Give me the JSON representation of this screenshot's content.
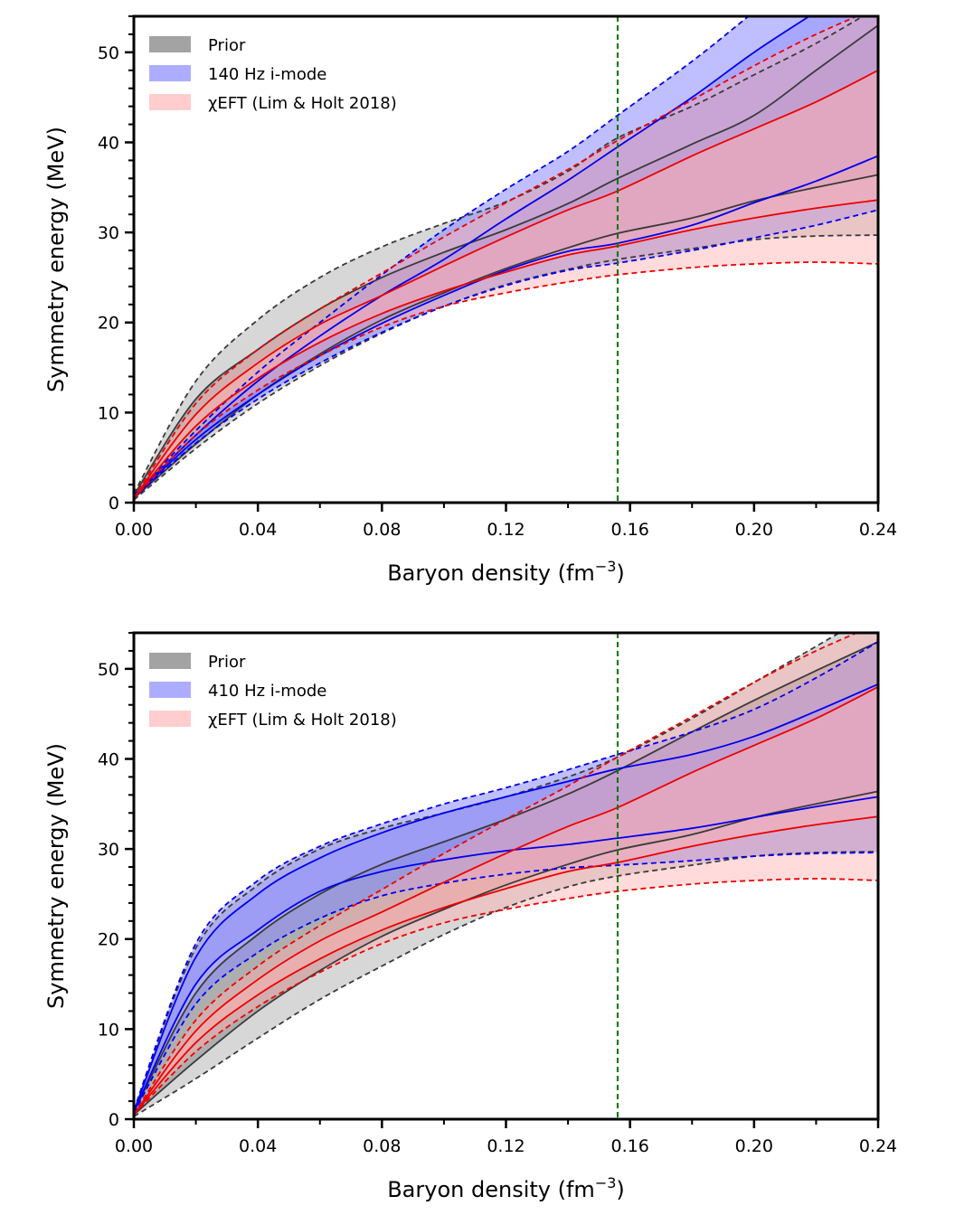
{
  "chart_data": [
    {
      "type": "area",
      "xlabel": "Baryon density (fm",
      "xlabel_sup": "−3",
      "xlabel_end": ")",
      "ylabel": "Symmetry energy (MeV)",
      "xlim": [
        0,
        0.24
      ],
      "ylim": [
        0,
        54
      ],
      "xticks": [
        0.0,
        0.04,
        0.08,
        0.12,
        0.16,
        0.2,
        0.24
      ],
      "xtick_labels": [
        "0.00",
        "0.04",
        "0.08",
        "0.12",
        "0.16",
        "0.20",
        "0.24"
      ],
      "yticks": [
        0,
        10,
        20,
        30,
        40,
        50
      ],
      "ytick_labels": [
        "0",
        "10",
        "20",
        "30",
        "40",
        "50"
      ],
      "vline_x": 0.156,
      "legend_position": "top-left",
      "legend": [
        {
          "label": "Prior",
          "color": "#8c8c8c"
        },
        {
          "label": "140 Hz i-mode",
          "color": "#9999ff"
        },
        {
          "label": "χEFT (Lim & Holt 2018)",
          "color": "#ffc0c0"
        }
      ],
      "x": [
        0.0,
        0.02,
        0.04,
        0.06,
        0.08,
        0.1,
        0.12,
        0.14,
        0.156,
        0.18,
        0.2,
        0.22,
        0.24
      ],
      "series": [
        {
          "name": "Prior",
          "kind": "prior",
          "outer_upper": [
            1.0,
            13.5,
            20.3,
            25.0,
            28.4,
            31.0,
            33.4,
            36.8,
            40.5,
            44.0,
            47.5,
            51.0,
            55.0
          ],
          "inner_upper": [
            0.8,
            11.5,
            17.0,
            21.5,
            25.0,
            27.8,
            30.3,
            33.2,
            36.0,
            39.8,
            43.0,
            48.0,
            53.0
          ],
          "inner_lower": [
            0.5,
            6.5,
            12.0,
            16.5,
            20.3,
            23.3,
            26.0,
            28.3,
            29.9,
            31.6,
            33.5,
            35.0,
            36.4
          ],
          "outer_lower": [
            0.3,
            6.0,
            11.0,
            15.2,
            18.8,
            21.8,
            24.2,
            25.9,
            27.0,
            28.2,
            29.2,
            29.6,
            29.7
          ]
        },
        {
          "name": "140 Hz i-mode",
          "kind": "imode",
          "outer_upper": [
            0.8,
            8.0,
            14.5,
            20.0,
            25.3,
            30.3,
            34.8,
            39.0,
            43.0,
            49.0,
            54.5,
            60.0,
            66.0
          ],
          "inner_upper": [
            0.7,
            7.5,
            13.5,
            18.5,
            23.0,
            27.0,
            31.5,
            35.8,
            39.5,
            45.0,
            50.0,
            54.5,
            59.0
          ],
          "inner_lower": [
            0.6,
            7.0,
            12.0,
            16.3,
            19.9,
            23.0,
            25.8,
            27.9,
            28.8,
            30.8,
            33.3,
            35.7,
            38.5
          ],
          "outer_lower": [
            0.5,
            6.6,
            11.5,
            15.5,
            18.9,
            21.8,
            24.1,
            25.8,
            26.6,
            28.0,
            29.4,
            30.8,
            32.5
          ]
        },
        {
          "name": "χEFT (Lim & Holt 2018)",
          "kind": "chieft",
          "outer_upper": [
            0.5,
            11.0,
            17.0,
            21.5,
            25.5,
            29.5,
            33.3,
            37.0,
            40.2,
            44.7,
            48.5,
            52.0,
            55.0
          ],
          "inner_upper": [
            0.5,
            9.8,
            15.5,
            19.8,
            23.0,
            26.3,
            29.5,
            32.5,
            34.6,
            38.5,
            41.5,
            44.5,
            48.0
          ],
          "inner_lower": [
            0.5,
            8.5,
            13.8,
            17.8,
            21.0,
            23.5,
            25.6,
            27.5,
            28.5,
            30.3,
            31.6,
            32.7,
            33.6
          ],
          "outer_lower": [
            0.5,
            7.5,
            12.5,
            16.3,
            19.5,
            21.8,
            23.3,
            24.5,
            25.3,
            26.1,
            26.5,
            26.7,
            26.5
          ]
        }
      ]
    },
    {
      "type": "area",
      "xlabel": "Baryon density (fm",
      "xlabel_sup": "−3",
      "xlabel_end": ")",
      "ylabel": "Symmetry energy (MeV)",
      "xlim": [
        0,
        0.24
      ],
      "ylim": [
        0,
        54
      ],
      "xticks": [
        0.0,
        0.04,
        0.08,
        0.12,
        0.16,
        0.2,
        0.24
      ],
      "xtick_labels": [
        "0.00",
        "0.04",
        "0.08",
        "0.12",
        "0.16",
        "0.20",
        "0.24"
      ],
      "yticks": [
        0,
        10,
        20,
        30,
        40,
        50
      ],
      "ytick_labels": [
        "0",
        "10",
        "20",
        "30",
        "40",
        "50"
      ],
      "vline_x": 0.156,
      "legend_position": "top-left",
      "legend": [
        {
          "label": "Prior",
          "color": "#8c8c8c"
        },
        {
          "label": "410 Hz i-mode",
          "color": "#9999ff"
        },
        {
          "label": "χEFT (Lim & Holt 2018)",
          "color": "#ffc0c0"
        }
      ],
      "x": [
        0.0,
        0.02,
        0.04,
        0.06,
        0.08,
        0.1,
        0.12,
        0.14,
        0.156,
        0.18,
        0.2,
        0.22,
        0.24
      ],
      "series": [
        {
          "name": "Prior",
          "kind": "prior",
          "outer_upper": [
            1.0,
            19.0,
            26.0,
            30.0,
            32.3,
            34.0,
            35.8,
            38.0,
            40.2,
            44.5,
            48.5,
            52.5,
            56.5
          ],
          "inner_upper": [
            0.8,
            14.0,
            20.5,
            25.0,
            28.3,
            30.8,
            33.3,
            36.1,
            38.7,
            43.0,
            46.5,
            49.8,
            53.0
          ],
          "inner_lower": [
            0.5,
            6.5,
            12.0,
            16.5,
            20.3,
            23.3,
            26.0,
            28.3,
            29.9,
            31.6,
            33.5,
            35.0,
            36.4
          ],
          "outer_lower": [
            0.3,
            4.5,
            9.0,
            13.3,
            17.0,
            20.5,
            23.5,
            25.8,
            27.0,
            28.2,
            29.2,
            29.6,
            29.7
          ]
        },
        {
          "name": "410 Hz i-mode",
          "kind": "imode",
          "outer_upper": [
            1.0,
            19.5,
            26.5,
            30.3,
            32.8,
            35.0,
            36.8,
            38.8,
            40.5,
            43.0,
            45.5,
            49.0,
            53.0
          ],
          "inner_upper": [
            0.9,
            18.0,
            25.0,
            29.0,
            31.8,
            34.0,
            35.8,
            37.5,
            38.9,
            40.5,
            42.5,
            45.3,
            48.3
          ],
          "inner_lower": [
            0.8,
            15.0,
            21.0,
            25.3,
            27.5,
            28.8,
            29.8,
            30.5,
            31.2,
            32.3,
            33.5,
            34.7,
            35.8
          ],
          "outer_lower": [
            0.7,
            12.8,
            18.5,
            22.3,
            24.8,
            26.2,
            27.2,
            27.9,
            28.2,
            28.7,
            29.2,
            29.5,
            29.6
          ]
        },
        {
          "name": "χEFT (Lim & Holt 2018)",
          "kind": "chieft",
          "outer_upper": [
            0.5,
            11.0,
            17.0,
            21.5,
            25.5,
            29.5,
            33.3,
            37.0,
            40.2,
            44.7,
            48.5,
            52.0,
            55.0
          ],
          "inner_upper": [
            0.5,
            9.8,
            15.5,
            19.8,
            23.0,
            26.3,
            29.5,
            32.5,
            34.6,
            38.5,
            41.5,
            44.5,
            48.0
          ],
          "inner_lower": [
            0.5,
            8.5,
            13.8,
            17.8,
            21.0,
            23.5,
            25.6,
            27.5,
            28.5,
            30.3,
            31.6,
            32.7,
            33.6
          ],
          "outer_lower": [
            0.5,
            7.5,
            12.5,
            16.3,
            19.5,
            21.8,
            23.3,
            24.5,
            25.3,
            26.1,
            26.5,
            26.7,
            26.5
          ]
        }
      ]
    }
  ],
  "colors": {
    "prior_fill": "#8c8c8c",
    "prior_line": "#3a3a3a",
    "imode_fill": "#8a8aff",
    "imode_line": "#0000ee",
    "chieft_fill": "#ffb0b0",
    "chieft_line": "#ee0000",
    "vline": "#007700"
  }
}
